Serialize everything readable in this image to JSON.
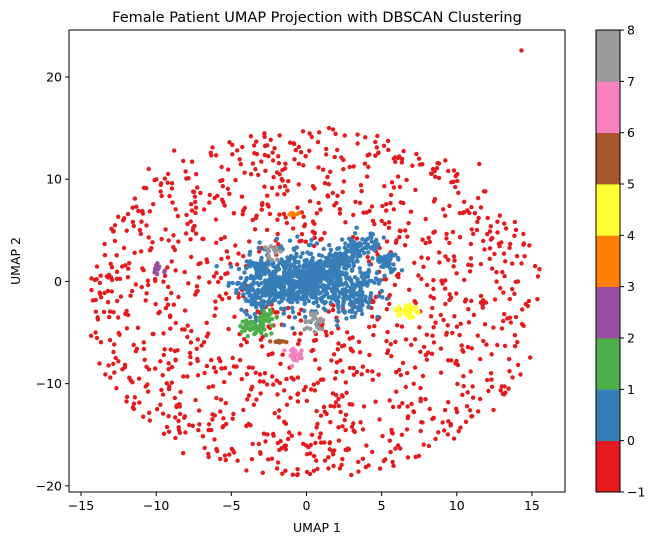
{
  "chart_data": {
    "type": "scatter",
    "title": "Female Patient UMAP Projection with DBSCAN Clustering",
    "xlabel": "UMAP 1",
    "ylabel": "UMAP 2",
    "xlim": [
      -15.8,
      17.2
    ],
    "ylim": [
      -20.6,
      24.6
    ],
    "xticks": [
      -15,
      -10,
      -5,
      0,
      5,
      10,
      15
    ],
    "yticks": [
      -20,
      -10,
      0,
      10,
      20
    ],
    "grid": false,
    "colorbar": {
      "range": [
        -1,
        8
      ],
      "ticks": [
        -1,
        0,
        1,
        2,
        3,
        4,
        5,
        6,
        7,
        8
      ],
      "colormap": "Set1",
      "colors": [
        "#e41a1c",
        "#377eb8",
        "#4daf4a",
        "#984ea3",
        "#ff7f00",
        "#ffff33",
        "#a65628",
        "#f781bf",
        "#999999"
      ]
    },
    "clusters": [
      {
        "label": -1,
        "color": "#e41a1c",
        "description": "noise points spread over an ellipse roughly x -14.5 to 15.5, y -19 to 15",
        "sample_points": [
          [
            14.3,
            22.6
          ],
          [
            -8.2,
            -16.8
          ],
          [
            -4.0,
            -18.5
          ],
          [
            1.5,
            15.0
          ],
          [
            15.5,
            1.2
          ],
          [
            -14.3,
            0.3
          ],
          [
            -10.5,
            11.0
          ],
          [
            11.5,
            11.5
          ],
          [
            -8.8,
            12.8
          ]
        ]
      },
      {
        "label": 0,
        "color": "#377eb8",
        "description": "large central cluster",
        "center": [
          1.0,
          0.2
        ],
        "extent": {
          "x": [
            -4.0,
            6.5
          ],
          "y": [
            -3.5,
            5.2
          ]
        }
      },
      {
        "label": 1,
        "color": "#4daf4a",
        "center": [
          -3.3,
          -4.3
        ]
      },
      {
        "label": 2,
        "color": "#984ea3",
        "center": [
          -9.9,
          1.2
        ]
      },
      {
        "label": 3,
        "color": "#ff7f00",
        "center": [
          -0.8,
          6.6
        ]
      },
      {
        "label": 4,
        "color": "#ffff33",
        "center": [
          6.6,
          -2.9
        ]
      },
      {
        "label": 5,
        "color": "#a65628",
        "center": [
          -1.8,
          -5.9
        ]
      },
      {
        "label": 6,
        "color": "#f781bf",
        "center": [
          -0.8,
          -7.5
        ]
      },
      {
        "label": 7,
        "color": "#999999",
        "center": [
          0.6,
          -3.8
        ],
        "secondary_center": [
          -2.3,
          2.8
        ]
      }
    ]
  }
}
